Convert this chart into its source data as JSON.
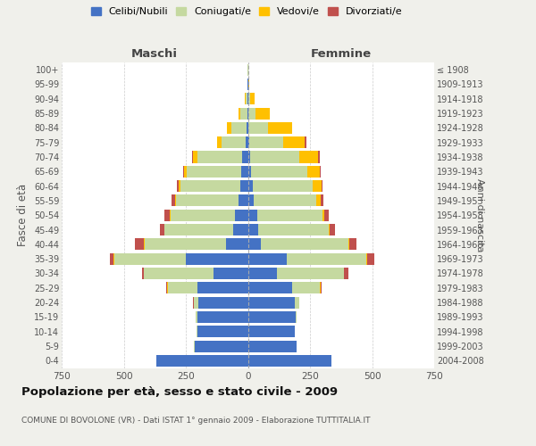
{
  "age_groups": [
    "0-4",
    "5-9",
    "10-14",
    "15-19",
    "20-24",
    "25-29",
    "30-34",
    "35-39",
    "40-44",
    "45-49",
    "50-54",
    "55-59",
    "60-64",
    "65-69",
    "70-74",
    "75-79",
    "80-84",
    "85-89",
    "90-94",
    "95-99",
    "100+"
  ],
  "birth_years": [
    "2004-2008",
    "1999-2003",
    "1994-1998",
    "1989-1993",
    "1984-1988",
    "1979-1983",
    "1974-1978",
    "1969-1973",
    "1964-1968",
    "1959-1963",
    "1954-1958",
    "1949-1953",
    "1944-1948",
    "1939-1943",
    "1934-1938",
    "1929-1933",
    "1924-1928",
    "1919-1923",
    "1914-1918",
    "1909-1913",
    "≤ 1908"
  ],
  "male": {
    "celibe": [
      370,
      215,
      205,
      205,
      200,
      205,
      140,
      250,
      88,
      58,
      52,
      38,
      32,
      28,
      22,
      8,
      4,
      3,
      2,
      1,
      0
    ],
    "coniugato": [
      0,
      1,
      2,
      4,
      18,
      118,
      278,
      288,
      328,
      278,
      258,
      252,
      238,
      218,
      182,
      98,
      62,
      28,
      8,
      2,
      1
    ],
    "vedovo": [
      0,
      0,
      0,
      0,
      0,
      2,
      2,
      2,
      2,
      2,
      4,
      4,
      8,
      12,
      18,
      18,
      18,
      8,
      4,
      0,
      0
    ],
    "divorziato": [
      0,
      0,
      0,
      0,
      2,
      4,
      8,
      14,
      38,
      18,
      22,
      12,
      8,
      4,
      4,
      0,
      0,
      0,
      0,
      0,
      0
    ]
  },
  "female": {
    "nubile": [
      338,
      195,
      188,
      192,
      188,
      178,
      118,
      158,
      52,
      42,
      38,
      22,
      18,
      12,
      8,
      4,
      2,
      2,
      2,
      0,
      0
    ],
    "coniugata": [
      0,
      1,
      2,
      4,
      18,
      112,
      268,
      318,
      352,
      282,
      262,
      252,
      242,
      228,
      198,
      138,
      78,
      28,
      6,
      2,
      1
    ],
    "vedova": [
      0,
      0,
      0,
      0,
      0,
      2,
      2,
      4,
      4,
      6,
      8,
      18,
      38,
      48,
      78,
      88,
      98,
      58,
      18,
      2,
      0
    ],
    "divorziata": [
      0,
      0,
      0,
      0,
      2,
      4,
      18,
      28,
      28,
      22,
      18,
      12,
      4,
      4,
      4,
      4,
      0,
      0,
      0,
      0,
      0
    ]
  },
  "colors": {
    "celibe": "#4472c4",
    "coniugato": "#c5d9a0",
    "vedovo": "#ffc000",
    "divorziato": "#c0504d"
  },
  "legend_labels": [
    "Celibi/Nubili",
    "Coniugati/e",
    "Vedovi/e",
    "Divorziati/e"
  ],
  "title": "Popolazione per età, sesso e stato civile - 2009",
  "subtitle": "COMUNE DI BOVOLONE (VR) - Dati ISTAT 1° gennaio 2009 - Elaborazione TUTTITALIA.IT",
  "ylabel_left": "Fasce di età",
  "ylabel_right": "Anni di nascita",
  "xlabel_left": "Maschi",
  "xlabel_right": "Femmine",
  "xlim": 750,
  "background_color": "#f0f0eb",
  "plot_bg": "#ffffff"
}
